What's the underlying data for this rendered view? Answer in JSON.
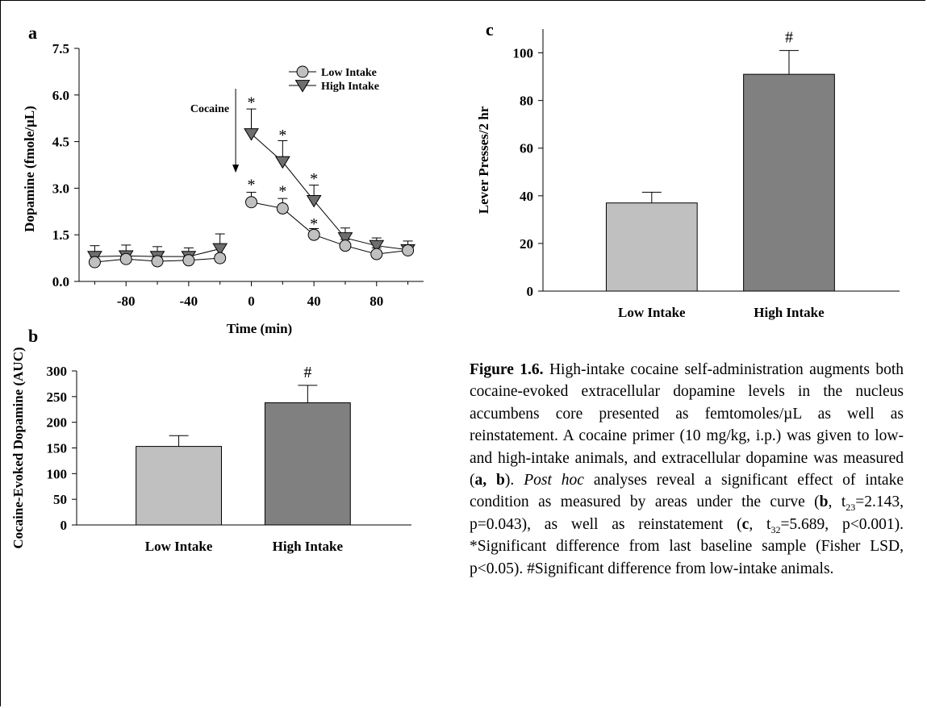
{
  "panels": {
    "a": "a",
    "b": "b",
    "c": "c"
  },
  "chart_data": [
    {
      "type": "line",
      "panel": "a",
      "xlabel": "Time (min)",
      "ylabel": "Dopamine (fmole/µL)",
      "xlim": [
        -110,
        110
      ],
      "ylim": [
        0,
        7.5
      ],
      "xticks": [
        -80,
        -40,
        0,
        40,
        80
      ],
      "yticks": [
        0.0,
        1.5,
        3.0,
        4.5,
        6.0,
        7.5
      ],
      "ytick_labels": [
        "0.0",
        "1.5",
        "3.0",
        "4.5",
        "6.0",
        "7.5"
      ],
      "legend_position": "top-right",
      "series": [
        {
          "name": "Low Intake",
          "marker": "circle",
          "color": "#c0c0c0",
          "segments": [
            {
              "x": [
                -100,
                -80,
                -60,
                -40,
                -20
              ],
              "y": [
                0.62,
                0.72,
                0.65,
                0.68,
                0.75
              ],
              "err": [
                0.18,
                0.12,
                0.12,
                0.1,
                0.12
              ]
            },
            {
              "x": [
                0,
                20,
                40,
                60,
                80,
                100
              ],
              "y": [
                2.55,
                2.35,
                1.5,
                1.15,
                0.88,
                1.0
              ],
              "err": [
                0.32,
                0.32,
                0.2,
                0.2,
                0.2,
                0.18
              ]
            }
          ]
        },
        {
          "name": "High Intake",
          "marker": "triangle-down",
          "color": "#6e6e6e",
          "segments": [
            {
              "x": [
                -100,
                -80,
                -60,
                -40,
                -20
              ],
              "y": [
                0.8,
                0.82,
                0.8,
                0.8,
                1.05
              ],
              "err": [
                0.35,
                0.35,
                0.32,
                0.28,
                0.48
              ]
            },
            {
              "x": [
                0,
                20,
                40,
                60,
                80,
                100
              ],
              "y": [
                4.75,
                3.85,
                2.6,
                1.4,
                1.15,
                1.02
              ],
              "err": [
                0.8,
                0.68,
                0.5,
                0.32,
                0.25,
                0.28
              ]
            }
          ]
        }
      ],
      "annotations": [
        {
          "text": "*",
          "x": 0,
          "y": 5.85
        },
        {
          "text": "*",
          "x": 20,
          "y": 4.8
        },
        {
          "text": "*",
          "x": 40,
          "y": 3.4
        },
        {
          "text": "*",
          "x": 0,
          "y": 3.2
        },
        {
          "text": "*",
          "x": 20,
          "y": 3.0
        },
        {
          "text": "*",
          "x": 40,
          "y": 1.95
        }
      ],
      "arrow_label": "Cocaine",
      "arrow_x": -10,
      "arrow_from_y": 6.2,
      "arrow_to_y": 3.5
    },
    {
      "type": "bar",
      "panel": "b",
      "ylabel": "Cocaine-Evoked Dopamine (AUC)",
      "ylim": [
        0,
        300
      ],
      "yticks": [
        0,
        50,
        100,
        150,
        200,
        250,
        300
      ],
      "categories": [
        "Low Intake",
        "High Intake"
      ],
      "values": [
        153,
        238
      ],
      "errors": [
        21,
        34
      ],
      "colors": [
        "#c0c0c0",
        "#808080"
      ],
      "annotations": [
        {
          "category": 1,
          "text": "#"
        }
      ]
    },
    {
      "type": "bar",
      "panel": "c",
      "ylabel": "Lever Presses/2 hr",
      "ylim": [
        0,
        110
      ],
      "yticks": [
        0,
        20,
        40,
        60,
        80,
        100
      ],
      "categories": [
        "Low Intake",
        "High Intake"
      ],
      "values": [
        37,
        91
      ],
      "errors": [
        4.5,
        10
      ],
      "colors": [
        "#c0c0c0",
        "#808080"
      ],
      "annotations": [
        {
          "category": 1,
          "text": "#"
        }
      ]
    }
  ],
  "caption": {
    "heading": "Figure 1.6.",
    "s1": " High-intake cocaine self-administration augments both cocaine-evoked extracellular dopamine levels in the nucleus accumbens core presented as femtomoles/µL as well as reinstatement. A cocaine primer (10 mg/kg, i.p.) was given to low- and high-intake animals, and extracellular dopamine was measured (",
    "ref_ab": "a, b",
    "s2": "). ",
    "post_hoc": "Post hoc",
    "s3": " analyses reveal a significant effect of intake condition as measured by areas under the curve (",
    "ref_b": "b",
    "s4": ", t",
    "sub_b": "23",
    "s5": "=2.143, p=0.043), as well as reinstatement (",
    "ref_c": "c",
    "s6": ", t",
    "sub_c": "32",
    "s7": "=5.689, p<0.001). *Significant difference from last baseline sample (Fisher LSD, p<0.05). #Significant difference from low-intake animals."
  }
}
